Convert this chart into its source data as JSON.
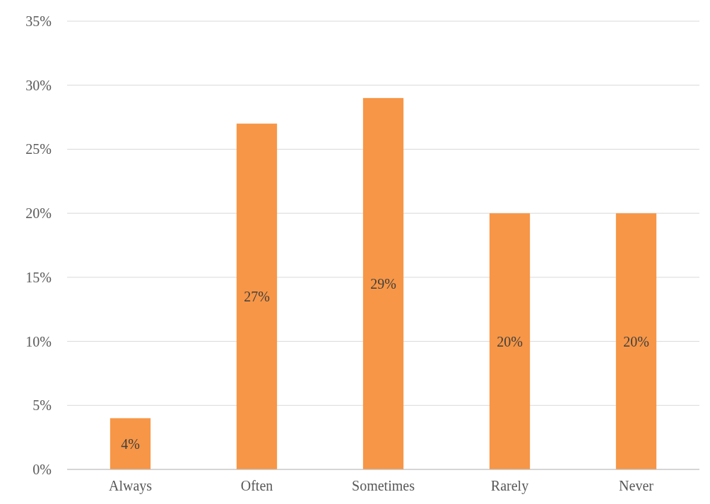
{
  "chart_data": {
    "type": "bar",
    "categories": [
      "Always",
      "Often",
      "Sometimes",
      "Rarely",
      "Never"
    ],
    "values": [
      4,
      27,
      29,
      20,
      20
    ],
    "color": "#f79646",
    "ylim": [
      0,
      35
    ],
    "yticks": [
      {
        "value": 0,
        "label": "0%"
      },
      {
        "value": 5,
        "label": "5%"
      },
      {
        "value": 10,
        "label": "10%"
      },
      {
        "value": 15,
        "label": "15%"
      },
      {
        "value": 20,
        "label": "20%"
      },
      {
        "value": 25,
        "label": "25%"
      },
      {
        "value": 30,
        "label": "30%"
      },
      {
        "value": 35,
        "label": "35%"
      }
    ],
    "grid": "y",
    "value_labels": [
      "4%",
      "27%",
      "29%",
      "20%",
      "20%"
    ]
  }
}
